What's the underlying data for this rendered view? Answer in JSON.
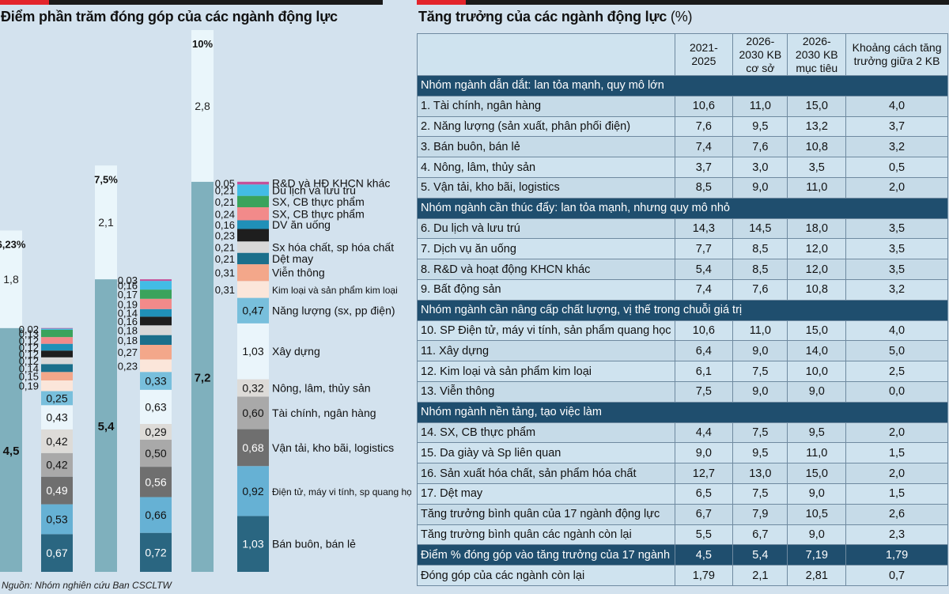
{
  "left_title": "Điểm phần trăm đóng góp của các ngành động lực",
  "right_title": "Tăng trưởng của các ngành động lực",
  "right_title_unit": "(%)",
  "source": "Nguồn: Nhóm nghiên cứu Ban CSCLTW",
  "colors": {
    "base_bar": "#7fb0bd",
    "remaining": "#eaf6fb",
    "header_dark": "#1f4e6e"
  },
  "chart_data": {
    "type": "bar",
    "title": "Điểm phần trăm đóng góp của các ngành động lực",
    "main_bars": [
      {
        "total_label": "6,23%",
        "base_value": 4.5,
        "base_label": "4,5",
        "top_value": 1.8,
        "top_label": "1,8"
      },
      {
        "total_label": "7,5%",
        "base_value": 5.4,
        "base_label": "5,4",
        "top_value": 2.1,
        "top_label": "2,1"
      },
      {
        "total_label": "10%",
        "base_value": 7.2,
        "base_label": "7,2",
        "top_value": 2.8,
        "top_label": "2,8"
      }
    ],
    "sector_colors": [
      "#2a6681",
      "#66b1d4",
      "#6f6f6f",
      "#a9a9a9",
      "#dddbd8",
      "#eaf5fb",
      "#78bfdc",
      "#fbe6da",
      "#f3a78a",
      "#1b6f8b",
      "#d8d8d8",
      "#1e1e1e",
      "#2090b8",
      "#f28a8a",
      "#3aa35c",
      "#43bce5",
      "#c4509a"
    ],
    "breakdowns": [
      {
        "values": [
          0.67,
          0.53,
          0.49,
          0.42,
          0.42,
          0.43,
          0.25,
          0.19,
          0.15,
          0.14,
          0.12,
          0.12,
          0.12,
          0.12,
          0.13,
          0.02,
          0.01
        ],
        "labels": [
          "0,67",
          "0,53",
          "0,49",
          "0,42",
          "0,42",
          "0,43",
          "0,25",
          "0,19",
          "0,15",
          "0,14",
          "0,12",
          "0,12",
          "0,12",
          "0,12",
          "0,13",
          "0,02",
          ""
        ]
      },
      {
        "values": [
          0.72,
          0.66,
          0.56,
          0.5,
          0.29,
          0.63,
          0.33,
          0.23,
          0.27,
          0.18,
          0.18,
          0.16,
          0.14,
          0.19,
          0.17,
          0.16,
          0.03
        ],
        "labels": [
          "0,72",
          "0,66",
          "0,56",
          "0,50",
          "0,29",
          "0,63",
          "0,33",
          "0,23",
          "0,27",
          "0,18",
          "0,18",
          "0,16",
          "0,14",
          "0,19",
          "0,17",
          "0,16",
          "0,03"
        ]
      },
      {
        "values": [
          1.03,
          0.92,
          0.68,
          0.6,
          0.32,
          1.03,
          0.47,
          0.31,
          0.31,
          0.21,
          0.21,
          0.23,
          0.16,
          0.24,
          0.21,
          0.21,
          0.05
        ],
        "labels": [
          "1,03",
          "0,92",
          "0,68",
          "0,60",
          "0,32",
          "1,03",
          "0,47",
          "0,31",
          "0,31",
          "0,21",
          "0,21",
          "0,23",
          "0,16",
          "0,24",
          "0,21",
          "0,21",
          "0,05"
        ]
      }
    ],
    "sectors": [
      "Bán buôn, bán lẻ",
      "Điện tử, máy vi tính, sp quang học",
      "Vận tải, kho bãi, logistics",
      "Tài chính, ngân hàng",
      "Nông, lâm, thủy sản",
      "Xây dựng",
      "Năng lượng (sx, pp điện)",
      "Kim loại và sản phẩm kim loại",
      "Viễn thông",
      "Dệt may",
      "Sx hóa chất, sp hóa chất",
      "",
      "DV ăn uống",
      "SX, CB thực phẩm",
      "SX, CB thực phẩm",
      "Du lịch và lưu trú",
      "R&D và HĐ KHCN khác"
    ]
  },
  "table": {
    "headers": [
      "",
      "2021-2025",
      "2026-2030 KB cơ sở",
      "2026-2030 KB mục tiêu",
      "Khoảng cách tăng trưởng giữa 2 KB"
    ],
    "sections": [
      {
        "title": "Nhóm ngành dẫn dắt: lan tỏa mạnh, quy mô lớn",
        "rows": [
          [
            "1. Tài chính, ngân hàng",
            "10,6",
            "11,0",
            "15,0",
            "4,0"
          ],
          [
            "2. Năng lượng (sản xuất, phân phối điện)",
            "7,6",
            "9,5",
            "13,2",
            "3,7"
          ],
          [
            "3. Bán buôn, bán lẻ",
            "7,4",
            "7,6",
            "10,8",
            "3,2"
          ],
          [
            "4. Nông, lâm, thủy sản",
            "3,7",
            "3,0",
            "3,5",
            "0,5"
          ],
          [
            "5. Vận tải, kho bãi, logistics",
            "8,5",
            "9,0",
            "11,0",
            "2,0"
          ]
        ]
      },
      {
        "title": "Nhóm ngành cần thúc đẩy: lan tỏa mạnh, nhưng quy mô nhỏ",
        "rows": [
          [
            "6. Du lịch và lưu trú",
            "14,3",
            "14,5",
            "18,0",
            "3,5"
          ],
          [
            "7. Dịch vụ ăn uống",
            "7,7",
            "8,5",
            "12,0",
            "3,5"
          ],
          [
            "8. R&D và hoạt động KHCN khác",
            "5,4",
            "8,5",
            "12,0",
            "3,5"
          ],
          [
            "9. Bất động sản",
            "7,4",
            "7,6",
            "10,8",
            "3,2"
          ]
        ]
      },
      {
        "title": "Nhóm ngành cần nâng cấp chất lượng, vị thế trong chuỗi giá trị",
        "rows": [
          [
            "10. SP Điện tử, máy vi tính, sản phẩm quang học",
            "10,6",
            "11,0",
            "15,0",
            "4,0"
          ],
          [
            "11. Xây dựng",
            "6,4",
            "9,0",
            "14,0",
            "5,0"
          ],
          [
            "12. Kim loại và sản phẩm kim loại",
            "6,1",
            "7,5",
            "10,0",
            "2,5"
          ],
          [
            "13. Viễn thông",
            "7,5",
            "9,0",
            "9,0",
            "0,0"
          ]
        ]
      },
      {
        "title": "Nhóm ngành nền tảng, tạo việc làm",
        "rows": [
          [
            "14. SX, CB thực phẩm",
            "4,4",
            "7,5",
            "9,5",
            "2,0"
          ],
          [
            "15. Da giày và Sp liên quan",
            "9,0",
            "9,5",
            "11,0",
            "1,5"
          ],
          [
            "16. Sản xuất hóa chất, sản phẩm hóa chất",
            "12,7",
            "13,0",
            "15,0",
            "2,0"
          ],
          [
            "17. Dệt may",
            "6,5",
            "7,5",
            "9,0",
            "1,5"
          ],
          [
            "Tăng trưởng bình quân của 17 ngành động lực",
            "6,7",
            "7,9",
            "10,5",
            "2,6"
          ],
          [
            "Tăng trường bình quân các ngành còn lại",
            "5,5",
            "6,7",
            "9,0",
            "2,3"
          ]
        ]
      }
    ],
    "highlight_row": [
      "Điểm % đóng góp vào tăng trưởng của 17 ngành",
      "4,5",
      "5,4",
      "7,19",
      "1,79"
    ],
    "last_row": [
      "Đóng góp của các ngành còn lại",
      "1,79",
      "2,1",
      "2,81",
      "0,7"
    ]
  }
}
